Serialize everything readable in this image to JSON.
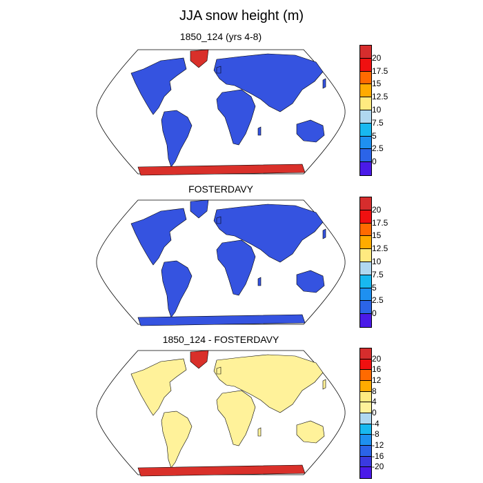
{
  "title": "JJA snow height (m)",
  "panels": [
    {
      "title": "1850_124 (yrs 4-8)",
      "land_color": "#3553e0",
      "greenland_color": "#d9302a",
      "antarctica_color": "#d9302a",
      "colorbar": {
        "labels": [
          "20",
          "17.5",
          "15",
          "12.5",
          "10",
          "7.5",
          "5",
          "2.5",
          "0"
        ],
        "colors": [
          "#d62d2d",
          "#f01010",
          "#ff6a00",
          "#ffab00",
          "#ffea80",
          "#b0d8f0",
          "#18b8f0",
          "#1e90f0",
          "#2b64e8",
          "#4a1ae8"
        ]
      }
    },
    {
      "title": "FOSTERDAVY",
      "land_color": "#3553e0",
      "greenland_color": "#3553e0",
      "antarctica_color": "#3553e0",
      "colorbar": {
        "labels": [
          "20",
          "17.5",
          "15",
          "12.5",
          "10",
          "7.5",
          "5",
          "2.5",
          "0"
        ],
        "colors": [
          "#d62d2d",
          "#f01010",
          "#ff6a00",
          "#ffab00",
          "#ffea80",
          "#b0d8f0",
          "#18b8f0",
          "#1e90f0",
          "#2b64e8",
          "#4a1ae8"
        ]
      }
    },
    {
      "title": "1850_124 - FOSTERDAVY",
      "land_color": "#fff29a",
      "greenland_color": "#d9302a",
      "antarctica_color": "#d9302a",
      "colorbar": {
        "labels": [
          "20",
          "16",
          "12",
          "8",
          "4",
          "0",
          "-4",
          "-8",
          "-12",
          "-16",
          "-20"
        ],
        "colors": [
          "#d62d2d",
          "#f01010",
          "#ff6a00",
          "#ffab00",
          "#ffea80",
          "#fff29a",
          "#b0d8f0",
          "#18b8f0",
          "#1e90f0",
          "#2b64e8",
          "#3a3ae0",
          "#4a1ae8"
        ]
      }
    }
  ]
}
